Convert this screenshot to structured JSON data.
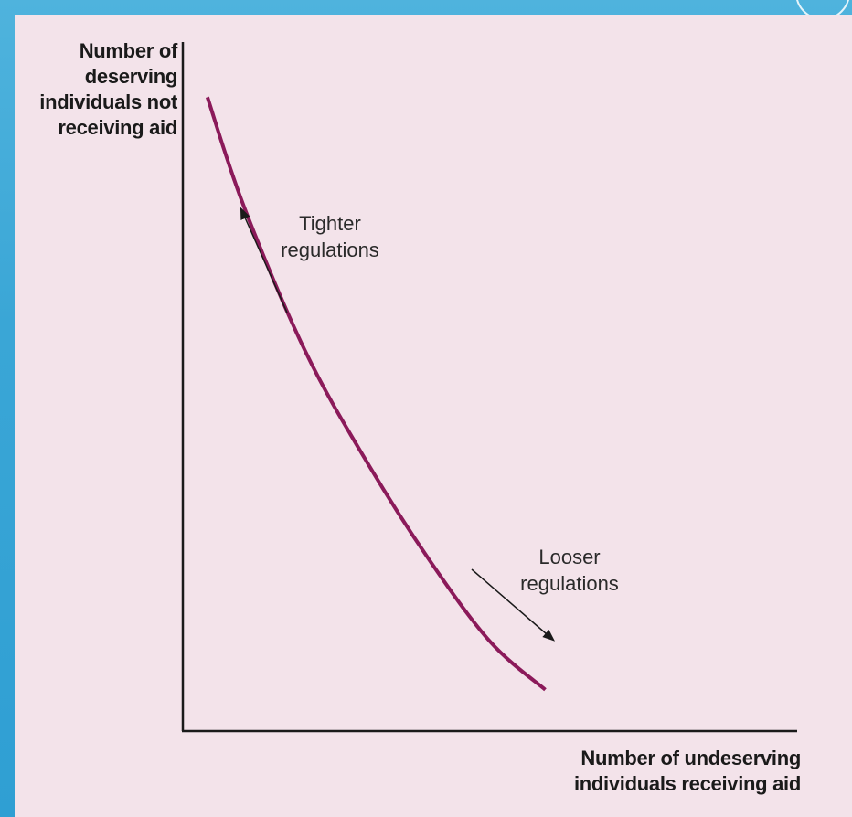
{
  "chart_data": {
    "type": "line",
    "title": "",
    "xlabel": "Number of undeserving individuals receiving aid",
    "ylabel": "Number of deserving individuals not receiving aid",
    "grid": false,
    "legend": null,
    "axis_ticks": false,
    "series": [
      {
        "color": "#8b1a5a",
        "points": [
          [
            0.04,
            0.92
          ],
          [
            0.1,
            0.76
          ],
          [
            0.2,
            0.55
          ],
          [
            0.3,
            0.39
          ],
          [
            0.4,
            0.25
          ],
          [
            0.5,
            0.13
          ],
          [
            0.59,
            0.06
          ]
        ]
      }
    ],
    "annotations": [
      {
        "key": "tighter",
        "text": "Tighter\nregulations",
        "direction": "up-left along curve"
      },
      {
        "key": "looser",
        "text": "Looser\nregulations",
        "direction": "down-right along curve"
      }
    ]
  },
  "colors": {
    "slide_background": "#3aa6d6",
    "panel_background": "#f3e3ea",
    "curve": "#8b1a5a",
    "axes": "#1a1a1a",
    "arrows": "#1a1a1a"
  }
}
